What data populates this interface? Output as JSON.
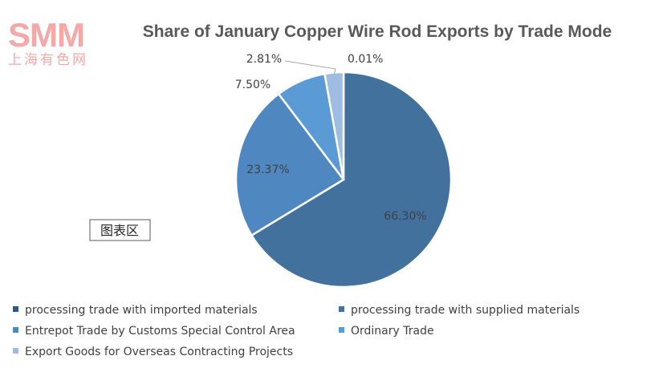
{
  "watermark": {
    "brand": "SMM",
    "subtitle": "上海有色网"
  },
  "area_label": "图表区",
  "chart_data": {
    "type": "pie",
    "title": "Share of January Copper Wire Rod Exports by Trade Mode",
    "series": [
      {
        "name": "processing trade with imported materials",
        "value": 0.01,
        "label": "0.01%",
        "color": "#2e5a86"
      },
      {
        "name": "processing trade with supplied materials",
        "value": 66.3,
        "label": "66.30%",
        "color": "#41719c"
      },
      {
        "name": "Entrepot Trade by Customs Special Control Area",
        "value": 23.37,
        "label": "23.37%",
        "color": "#4f87c0"
      },
      {
        "name": "Ordinary Trade",
        "value": 7.5,
        "label": "7.50%",
        "color": "#5b9bd5"
      },
      {
        "name": "Export Goods for Overseas Contracting Projects",
        "value": 2.81,
        "label": "2.81%",
        "color": "#9dbde3"
      }
    ],
    "legend_position": "bottom"
  }
}
